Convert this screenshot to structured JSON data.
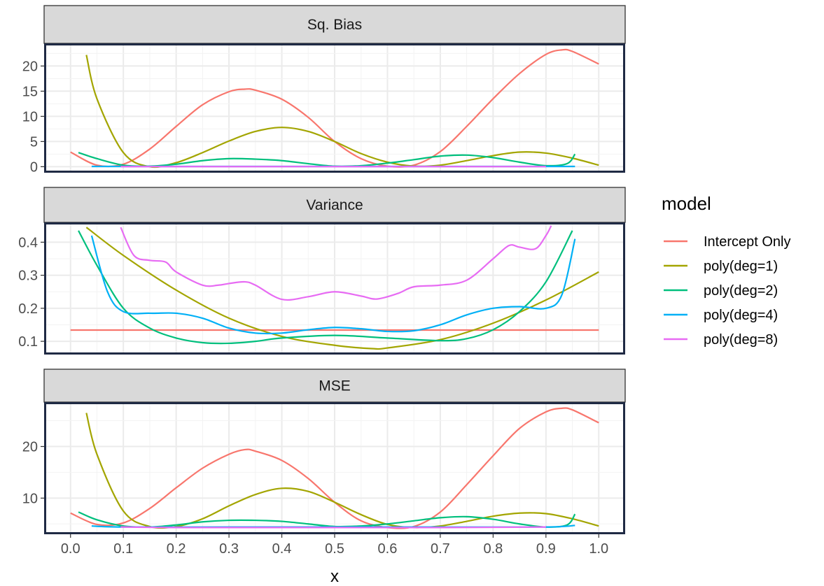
{
  "chart_data": {
    "type": "line",
    "xlabel": "x",
    "x_ticks": [
      "0.0",
      "0.1",
      "0.2",
      "0.3",
      "0.4",
      "0.5",
      "0.6",
      "0.7",
      "0.8",
      "0.9",
      "1.0"
    ],
    "xlim": [
      -0.05,
      1.05
    ],
    "grid": true,
    "legend": {
      "title": "model",
      "placement": "right",
      "entries": [
        "Intercept Only",
        "poly(deg=1)",
        "poly(deg=2)",
        "poly(deg=4)",
        "poly(deg=8)"
      ]
    },
    "colors": {
      "Intercept Only": "#F8766D",
      "poly(deg=1)": "#A3A500",
      "poly(deg=2)": "#00BF7D",
      "poly(deg=4)": "#00B0F6",
      "poly(deg=8)": "#E76BF3"
    },
    "panels": [
      {
        "title": "Sq. Bias",
        "ylim": [
          -1.2,
          24.5
        ],
        "y_ticks": [
          "0",
          "5",
          "10",
          "15",
          "20"
        ],
        "y_tick_values": [
          0,
          5,
          10,
          15,
          20
        ],
        "series": [
          {
            "name": "Intercept Only",
            "x": [
              0,
              0.05,
              0.1,
              0.15,
              0.2,
              0.25,
              0.3,
              0.33,
              0.35,
              0.4,
              0.45,
              0.5,
              0.55,
              0.6,
              0.65,
              0.7,
              0.75,
              0.8,
              0.85,
              0.9,
              0.93,
              0.95,
              1.0
            ],
            "y": [
              2.9,
              0.3,
              0.5,
              3.5,
              8.0,
              12.3,
              14.9,
              15.4,
              15.2,
              13.4,
              9.8,
              5.0,
              1.6,
              0.1,
              0.3,
              3.0,
              8.0,
              13.5,
              18.5,
              22.3,
              23.2,
              22.9,
              20.4
            ]
          },
          {
            "name": "poly(deg=1)",
            "x": [
              0.03,
              0.05,
              0.1,
              0.15,
              0.2,
              0.25,
              0.3,
              0.35,
              0.4,
              0.45,
              0.5,
              0.55,
              0.6,
              0.65,
              0.7,
              0.75,
              0.8,
              0.85,
              0.9,
              0.95,
              1.0
            ],
            "y": [
              22.2,
              13.5,
              2.8,
              0.0,
              0.8,
              2.8,
              5.1,
              7.0,
              7.8,
              7.0,
              5.0,
              2.6,
              0.9,
              0.1,
              0.3,
              1.2,
              2.2,
              2.9,
              2.7,
              1.7,
              0.3
            ]
          },
          {
            "name": "poly(deg=2)",
            "x": [
              0.015,
              0.05,
              0.1,
              0.15,
              0.2,
              0.25,
              0.3,
              0.35,
              0.4,
              0.45,
              0.5,
              0.55,
              0.6,
              0.65,
              0.7,
              0.75,
              0.8,
              0.85,
              0.9,
              0.94,
              0.955
            ],
            "y": [
              2.8,
              1.6,
              0.3,
              0.1,
              0.5,
              1.2,
              1.6,
              1.5,
              1.2,
              0.6,
              0.1,
              0.2,
              0.7,
              1.4,
              2.1,
              2.3,
              1.8,
              0.9,
              0.2,
              0.6,
              2.5
            ]
          },
          {
            "name": "poly(deg=4)",
            "x": [
              0.04,
              0.1,
              0.3,
              0.5,
              0.7,
              0.9,
              0.955
            ],
            "y": [
              0.05,
              0.05,
              0.05,
              0.05,
              0.05,
              0.05,
              0.05
            ]
          },
          {
            "name": "poly(deg=8)",
            "x": [
              0.095,
              0.3,
              0.5,
              0.7,
              0.9
            ],
            "y": [
              0.02,
              0.02,
              0.02,
              0.02,
              0.02
            ]
          }
        ]
      },
      {
        "title": "Variance",
        "ylim": [
          0.06,
          0.46
        ],
        "y_ticks": [
          "0.1",
          "0.2",
          "0.3",
          "0.4"
        ],
        "y_tick_values": [
          0.1,
          0.2,
          0.3,
          0.4
        ],
        "series": [
          {
            "name": "Intercept Only",
            "x": [
              0,
              1.0
            ],
            "y": [
              0.134,
              0.134
            ]
          },
          {
            "name": "poly(deg=1)",
            "x": [
              0.03,
              0.1,
              0.2,
              0.3,
              0.4,
              0.5,
              0.57,
              0.6,
              0.7,
              0.8,
              0.9,
              1.0
            ],
            "y": [
              0.445,
              0.36,
              0.255,
              0.17,
              0.115,
              0.088,
              0.078,
              0.08,
              0.105,
              0.155,
              0.225,
              0.31
            ]
          },
          {
            "name": "poly(deg=2)",
            "x": [
              0.015,
              0.05,
              0.1,
              0.15,
              0.2,
              0.25,
              0.3,
              0.35,
              0.4,
              0.5,
              0.6,
              0.7,
              0.75,
              0.8,
              0.85,
              0.9,
              0.95
            ],
            "y": [
              0.435,
              0.33,
              0.2,
              0.14,
              0.11,
              0.096,
              0.094,
              0.1,
              0.11,
              0.118,
              0.11,
              0.102,
              0.108,
              0.135,
              0.19,
              0.28,
              0.435
            ]
          },
          {
            "name": "poly(deg=4)",
            "x": [
              0.04,
              0.07,
              0.1,
              0.15,
              0.2,
              0.25,
              0.3,
              0.35,
              0.4,
              0.45,
              0.5,
              0.55,
              0.6,
              0.65,
              0.7,
              0.75,
              0.8,
              0.85,
              0.9,
              0.93,
              0.955
            ],
            "y": [
              0.42,
              0.25,
              0.19,
              0.185,
              0.185,
              0.17,
              0.14,
              0.125,
              0.125,
              0.135,
              0.142,
              0.138,
              0.13,
              0.132,
              0.15,
              0.18,
              0.2,
              0.205,
              0.2,
              0.24,
              0.41
            ]
          },
          {
            "name": "poly(deg=8)",
            "x": [
              0.095,
              0.12,
              0.15,
              0.18,
              0.2,
              0.25,
              0.28,
              0.3,
              0.33,
              0.35,
              0.4,
              0.45,
              0.5,
              0.55,
              0.58,
              0.62,
              0.65,
              0.7,
              0.75,
              0.8,
              0.83,
              0.85,
              0.88,
              0.9,
              0.91
            ],
            "y": [
              0.445,
              0.36,
              0.345,
              0.34,
              0.31,
              0.27,
              0.27,
              0.275,
              0.28,
              0.27,
              0.227,
              0.235,
              0.25,
              0.237,
              0.228,
              0.245,
              0.265,
              0.27,
              0.285,
              0.35,
              0.39,
              0.385,
              0.38,
              0.42,
              0.45
            ]
          }
        ]
      },
      {
        "title": "MSE",
        "ylim": [
          3.0,
          28.6
        ],
        "y_ticks": [
          "10",
          "20"
        ],
        "y_tick_values": [
          10,
          20
        ],
        "series": [
          {
            "name": "Intercept Only",
            "x": [
              0,
              0.05,
              0.1,
              0.15,
              0.2,
              0.25,
              0.3,
              0.33,
              0.35,
              0.4,
              0.45,
              0.5,
              0.55,
              0.6,
              0.65,
              0.7,
              0.75,
              0.8,
              0.85,
              0.9,
              0.93,
              0.95,
              1.0
            ],
            "y": [
              7.1,
              4.9,
              5.2,
              8.0,
              12.0,
              15.8,
              18.5,
              19.4,
              19.1,
              17.3,
              13.8,
              9.2,
              5.6,
              4.3,
              4.5,
              7.3,
              12.6,
              18.2,
              23.5,
              26.7,
              27.4,
              27.1,
              24.6
            ]
          },
          {
            "name": "poly(deg=1)",
            "x": [
              0.03,
              0.05,
              0.1,
              0.15,
              0.2,
              0.25,
              0.3,
              0.35,
              0.4,
              0.45,
              0.5,
              0.55,
              0.6,
              0.65,
              0.7,
              0.75,
              0.8,
              0.85,
              0.9,
              0.95,
              1.0
            ],
            "y": [
              26.5,
              18.5,
              7.5,
              4.5,
              4.5,
              6.0,
              8.5,
              10.7,
              11.9,
              11.3,
              9.2,
              6.8,
              4.9,
              4.3,
              4.6,
              5.5,
              6.5,
              7.1,
              7.0,
              6.0,
              4.6
            ]
          },
          {
            "name": "poly(deg=2)",
            "x": [
              0.015,
              0.05,
              0.1,
              0.15,
              0.2,
              0.25,
              0.3,
              0.35,
              0.4,
              0.45,
              0.5,
              0.55,
              0.6,
              0.65,
              0.7,
              0.75,
              0.8,
              0.85,
              0.9,
              0.94,
              0.955
            ],
            "y": [
              7.3,
              5.8,
              4.6,
              4.4,
              4.8,
              5.4,
              5.7,
              5.7,
              5.5,
              5.0,
              4.5,
              4.6,
              5.0,
              5.6,
              6.2,
              6.4,
              5.9,
              5.0,
              4.4,
              4.8,
              6.9
            ]
          },
          {
            "name": "poly(deg=4)",
            "x": [
              0.04,
              0.1,
              0.3,
              0.5,
              0.7,
              0.9,
              0.955
            ],
            "y": [
              4.6,
              4.4,
              4.4,
              4.4,
              4.4,
              4.4,
              4.7
            ]
          },
          {
            "name": "poly(deg=8)",
            "x": [
              0.095,
              0.2,
              0.3,
              0.5,
              0.7,
              0.9
            ],
            "y": [
              4.4,
              4.3,
              4.3,
              4.3,
              4.3,
              4.4
            ]
          }
        ]
      }
    ]
  }
}
